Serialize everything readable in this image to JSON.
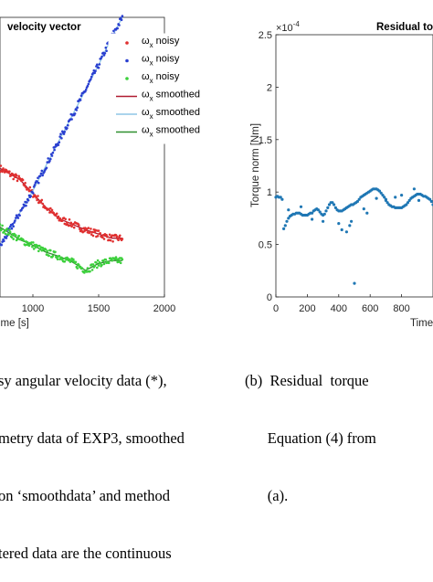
{
  "chart_data": [
    {
      "type": "scatter",
      "title": "velocity vector",
      "xlabel": "ime [s]",
      "ylabel": "",
      "xlim": [
        750,
        2000
      ],
      "ylim": [
        0,
        1
      ],
      "xticks": [
        "1000",
        "1500",
        "2000"
      ],
      "legend_position": "top-right",
      "legend": [
        {
          "symbol": "ω",
          "sub": "x",
          "text": " noisy",
          "color": "#e03030",
          "kind": "dot"
        },
        {
          "symbol": "ω",
          "sub": "x",
          "text": " noisy",
          "color": "#2a3fd0",
          "kind": "dot"
        },
        {
          "symbol": "ω",
          "sub": "x",
          "text": " noisy",
          "color": "#3cd03c",
          "kind": "dot"
        },
        {
          "symbol": "ω",
          "sub": "x",
          "text": " smoothed",
          "color": "#b01a30",
          "kind": "line"
        },
        {
          "symbol": "ω",
          "sub": "x",
          "text": " smoothed",
          "color": "#8ec6e6",
          "kind": "line"
        },
        {
          "symbol": "ω",
          "sub": "x",
          "text": " smoothed",
          "color": "#2f8f2f",
          "kind": "line"
        }
      ],
      "series": [
        {
          "color": "#e03030",
          "smooth_color": "#b01a30",
          "x": [
            750,
            900,
            1000,
            1100,
            1200,
            1300,
            1400,
            1500,
            1600,
            1680
          ],
          "y": [
            0.46,
            0.42,
            0.37,
            0.32,
            0.28,
            0.26,
            0.24,
            0.225,
            0.21,
            0.21
          ]
        },
        {
          "color": "#2a3fd0",
          "smooth_color": "#8ec6e6",
          "x": [
            750,
            800,
            900,
            1000,
            1100,
            1200,
            1300,
            1400,
            1500,
            1600,
            1680
          ],
          "y": [
            0.18,
            0.22,
            0.3,
            0.38,
            0.47,
            0.56,
            0.65,
            0.74,
            0.83,
            0.93,
            1.0
          ]
        },
        {
          "color": "#3cd03c",
          "smooth_color": "#2f8f2f",
          "x": [
            750,
            900,
            1000,
            1100,
            1200,
            1300,
            1400,
            1500,
            1600,
            1680
          ],
          "y": [
            0.25,
            0.205,
            0.185,
            0.16,
            0.145,
            0.125,
            0.095,
            0.12,
            0.13,
            0.13
          ]
        }
      ]
    },
    {
      "type": "scatter",
      "title": "Residual to",
      "xlabel": "Time",
      "ylabel": "Torque norm [Nm]",
      "xlim": [
        0,
        1000
      ],
      "ylim": [
        0,
        2.5
      ],
      "exponent_label": "×10",
      "exponent_power": "-4",
      "yticks": [
        "0",
        "0.5",
        "1",
        "1.5",
        "2",
        "2.5"
      ],
      "xticks": [
        "0",
        "200",
        "400",
        "600",
        "800"
      ],
      "color": "#1f77b4",
      "x": [
        0,
        10,
        20,
        30,
        40,
        50,
        60,
        70,
        80,
        90,
        100,
        110,
        120,
        130,
        140,
        150,
        160,
        170,
        180,
        190,
        200,
        210,
        220,
        230,
        240,
        250,
        260,
        270,
        280,
        290,
        300,
        310,
        320,
        330,
        340,
        350,
        360,
        370,
        380,
        390,
        400,
        410,
        420,
        430,
        440,
        450,
        460,
        470,
        480,
        490,
        500,
        510,
        520,
        530,
        540,
        550,
        560,
        570,
        580,
        590,
        600,
        610,
        620,
        630,
        640,
        650,
        660,
        670,
        680,
        690,
        700,
        710,
        720,
        730,
        740,
        750,
        760,
        770,
        780,
        790,
        800,
        810,
        820,
        830,
        840,
        850,
        860,
        870,
        880,
        890,
        900,
        910,
        920,
        930,
        940,
        950,
        960,
        970,
        980,
        990,
        1000,
        80,
        160,
        230,
        300,
        400,
        420,
        450,
        470,
        480,
        500,
        560,
        580,
        640,
        700,
        760,
        800,
        880,
        910
      ],
      "y": [
        0.95,
        0.96,
        0.95,
        0.95,
        0.93,
        0.65,
        0.68,
        0.72,
        0.75,
        0.77,
        0.78,
        0.79,
        0.79,
        0.8,
        0.8,
        0.8,
        0.79,
        0.78,
        0.78,
        0.78,
        0.78,
        0.79,
        0.8,
        0.8,
        0.82,
        0.83,
        0.84,
        0.83,
        0.81,
        0.79,
        0.78,
        0.79,
        0.82,
        0.85,
        0.88,
        0.9,
        0.9,
        0.88,
        0.85,
        0.83,
        0.82,
        0.82,
        0.82,
        0.83,
        0.84,
        0.85,
        0.86,
        0.87,
        0.88,
        0.88,
        0.89,
        0.9,
        0.91,
        0.93,
        0.95,
        0.96,
        0.97,
        0.98,
        0.99,
        1.0,
        1.01,
        1.02,
        1.03,
        1.03,
        1.03,
        1.02,
        1.01,
        0.99,
        0.97,
        0.95,
        0.93,
        0.9,
        0.88,
        0.87,
        0.86,
        0.86,
        0.85,
        0.85,
        0.85,
        0.85,
        0.85,
        0.86,
        0.87,
        0.88,
        0.9,
        0.92,
        0.94,
        0.95,
        0.96,
        0.97,
        0.98,
        0.98,
        0.98,
        0.97,
        0.96,
        0.96,
        0.95,
        0.94,
        0.93,
        0.91,
        0.88,
        0.83,
        0.86,
        0.74,
        0.72,
        0.7,
        0.64,
        0.62,
        0.68,
        0.72,
        0.13,
        0.84,
        0.8,
        0.94,
        0.92,
        0.95,
        0.97,
        1.03,
        0.92
      ]
    }
  ],
  "captions": {
    "left": [
      "sy angular velocity data (*),",
      "metry data of EXP3, smoothed",
      "on ‘smoothdata’ and method",
      "tered data are the continuous"
    ],
    "right": [
      "(b)  Residual  torque",
      "      Equation (4) from",
      "      (a)."
    ]
  }
}
